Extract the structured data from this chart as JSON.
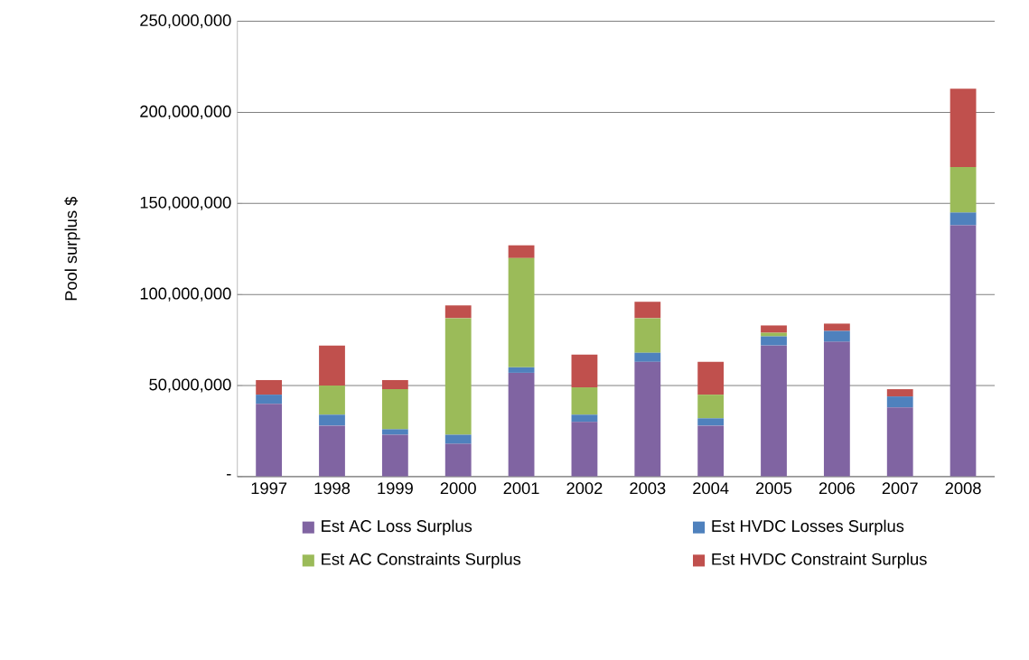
{
  "chart_data": {
    "type": "bar",
    "stacked": true,
    "ylabel": "Pool surplus $",
    "categories": [
      "1997",
      "1998",
      "1999",
      "2000",
      "2001",
      "2002",
      "2003",
      "2004",
      "2005",
      "2006",
      "2007",
      "2008"
    ],
    "series": [
      {
        "name": "Est AC Loss Surplus",
        "color": "#8064a2",
        "values": [
          40000000,
          28000000,
          23000000,
          18000000,
          57000000,
          30000000,
          63000000,
          28000000,
          72000000,
          74000000,
          38000000,
          138000000
        ]
      },
      {
        "name": "Est HVDC Losses Surplus",
        "color": "#4f81bd",
        "values": [
          5000000,
          6000000,
          3000000,
          5000000,
          3000000,
          4000000,
          5000000,
          4000000,
          5000000,
          6000000,
          6000000,
          7000000
        ]
      },
      {
        "name": "Est AC Constraints Surplus",
        "color": "#9bbb59",
        "values": [
          0,
          16000000,
          22000000,
          64000000,
          60000000,
          15000000,
          19000000,
          13000000,
          2000000,
          0,
          0,
          25000000
        ]
      },
      {
        "name": "Est HVDC Constraint Surplus",
        "color": "#c0504d",
        "values": [
          8000000,
          22000000,
          5000000,
          7000000,
          7000000,
          18000000,
          9000000,
          18000000,
          4000000,
          4000000,
          4000000,
          43000000
        ]
      }
    ],
    "ylim": [
      0,
      250000000
    ],
    "yticks": [
      {
        "value": 0,
        "label": "-"
      },
      {
        "value": 50000000,
        "label": "50,000,000"
      },
      {
        "value": 100000000,
        "label": "100,000,000"
      },
      {
        "value": 150000000,
        "label": "150,000,000"
      },
      {
        "value": 200000000,
        "label": "200,000,000"
      },
      {
        "value": 250000000,
        "label": "250,000,000"
      }
    ],
    "grid": "y",
    "legend": "bottom"
  }
}
